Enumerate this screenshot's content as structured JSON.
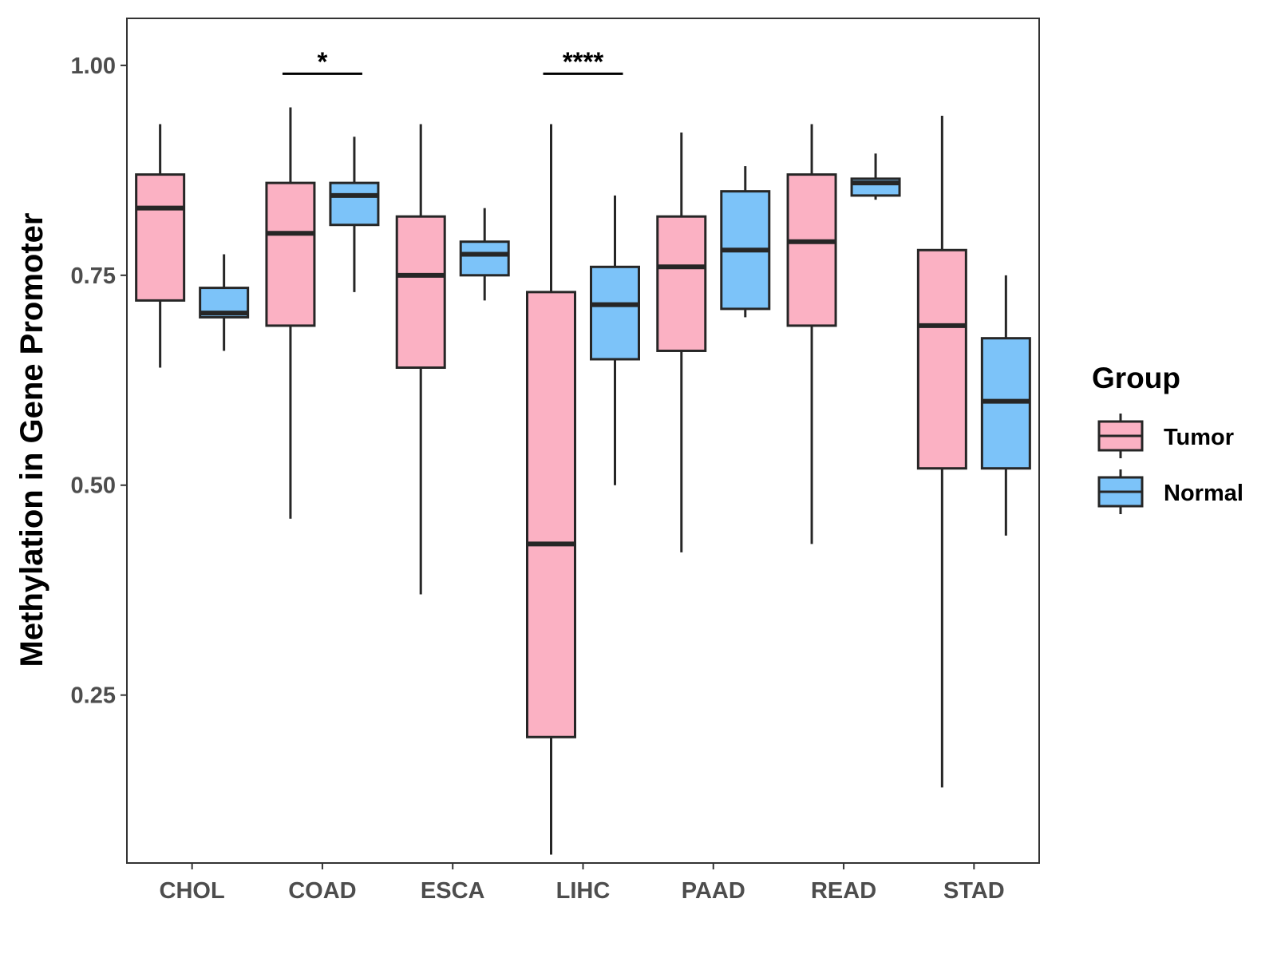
{
  "chart_data": {
    "type": "boxplot",
    "title": "",
    "xlabel": "",
    "ylabel": "Methylation in Gene Promoter",
    "ylim": [
      0.05,
      1.056
    ],
    "yticks": [
      0.25,
      0.5,
      0.75,
      1.0
    ],
    "ytick_labels": [
      "0.25",
      "0.50",
      "0.75",
      "1.00"
    ],
    "categories": [
      "CHOL",
      "COAD",
      "ESCA",
      "LIHC",
      "PAAD",
      "READ",
      "STAD"
    ],
    "grid": false,
    "legend": {
      "title": "Group",
      "position": "right",
      "entries": [
        {
          "name": "Tumor",
          "color": "#FBB1C3"
        },
        {
          "name": "Normal",
          "color": "#7CC3F9"
        }
      ]
    },
    "series": [
      {
        "name": "Tumor",
        "color": "#FBB1C3",
        "boxes": [
          {
            "min": 0.64,
            "q1": 0.72,
            "median": 0.83,
            "q3": 0.87,
            "max": 0.93
          },
          {
            "min": 0.46,
            "q1": 0.69,
            "median": 0.8,
            "q3": 0.86,
            "max": 0.95
          },
          {
            "min": 0.37,
            "q1": 0.64,
            "median": 0.75,
            "q3": 0.82,
            "max": 0.93
          },
          {
            "min": 0.06,
            "q1": 0.2,
            "median": 0.43,
            "q3": 0.73,
            "max": 0.93
          },
          {
            "min": 0.42,
            "q1": 0.66,
            "median": 0.76,
            "q3": 0.82,
            "max": 0.92
          },
          {
            "min": 0.43,
            "q1": 0.69,
            "median": 0.79,
            "q3": 0.87,
            "max": 0.93
          },
          {
            "min": 0.14,
            "q1": 0.52,
            "median": 0.69,
            "q3": 0.78,
            "max": 0.94
          }
        ]
      },
      {
        "name": "Normal",
        "color": "#7CC3F9",
        "boxes": [
          {
            "min": 0.66,
            "q1": 0.7,
            "median": 0.705,
            "q3": 0.735,
            "max": 0.775
          },
          {
            "min": 0.73,
            "q1": 0.81,
            "median": 0.845,
            "q3": 0.86,
            "max": 0.915
          },
          {
            "min": 0.72,
            "q1": 0.75,
            "median": 0.775,
            "q3": 0.79,
            "max": 0.83
          },
          {
            "min": 0.5,
            "q1": 0.65,
            "median": 0.715,
            "q3": 0.76,
            "max": 0.845
          },
          {
            "min": 0.7,
            "q1": 0.71,
            "median": 0.78,
            "q3": 0.85,
            "max": 0.88
          },
          {
            "min": 0.84,
            "q1": 0.845,
            "median": 0.86,
            "q3": 0.865,
            "max": 0.895
          },
          {
            "min": 0.44,
            "q1": 0.52,
            "median": 0.6,
            "q3": 0.675,
            "max": 0.75
          }
        ]
      }
    ],
    "annotations": [
      {
        "category": "COAD",
        "label": "*",
        "y": 0.99
      },
      {
        "category": "LIHC",
        "label": "****",
        "y": 0.99
      }
    ]
  }
}
